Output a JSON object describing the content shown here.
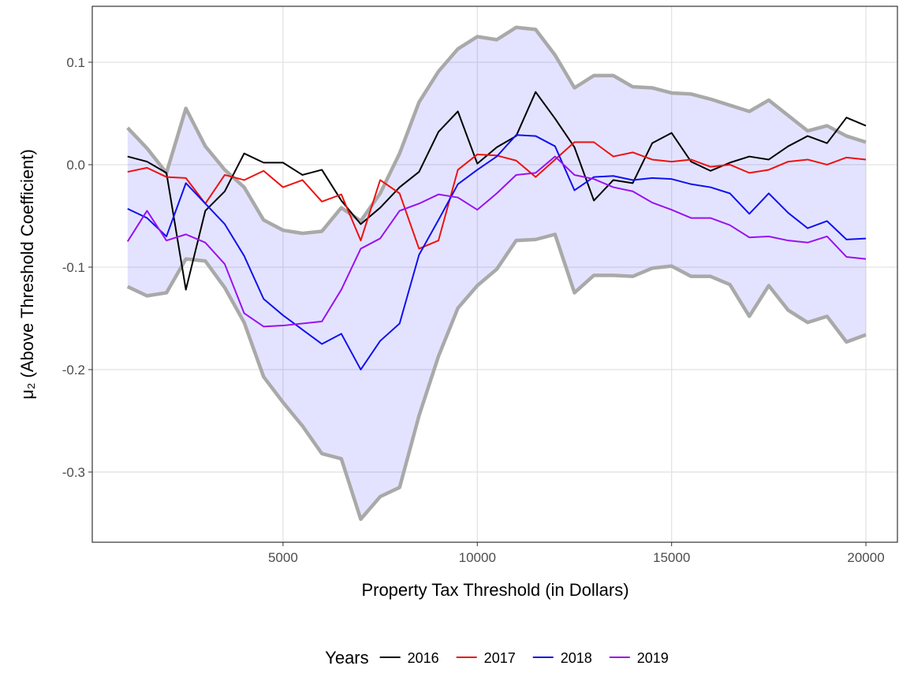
{
  "chart_data": {
    "type": "line",
    "x_label": "Property Tax Threshold (in Dollars)",
    "y_label": "μ₂ (Above Threshold Coefficient)",
    "legend_title": "Years",
    "legend_position": "bottom",
    "grid": true,
    "xlim": [
      91,
      20811
    ],
    "ylim": [
      -0.3685,
      0.1546
    ],
    "xticks": [
      5000,
      10000,
      15000,
      20000
    ],
    "yticks": [
      0.1,
      {
        "value": 0,
        "label": "0.0"
      },
      -0.1,
      -0.2,
      -0.3
    ],
    "x": [
      1000,
      1500,
      2000,
      2500,
      3000,
      3500,
      4000,
      4500,
      5000,
      5500,
      6000,
      6500,
      7000,
      7500,
      8000,
      8500,
      9000,
      9500,
      10000,
      10500,
      11000,
      11500,
      12000,
      12500,
      13000,
      13500,
      14000,
      14500,
      15000,
      15500,
      16000,
      16500,
      17000,
      17500,
      18000,
      18500,
      19000,
      19500,
      20000
    ],
    "band": {
      "fill": "#0000ff",
      "line_color": "#a9a9a9",
      "upper": [
        0.036,
        0.016,
        -0.008,
        0.055,
        0.018,
        -0.005,
        -0.022,
        -0.054,
        -0.064,
        -0.067,
        -0.065,
        -0.042,
        -0.055,
        -0.028,
        0.011,
        0.061,
        0.091,
        0.113,
        0.125,
        0.122,
        0.134,
        0.132,
        0.107,
        0.075,
        0.087,
        0.087,
        0.076,
        0.075,
        0.07,
        0.069,
        0.064,
        0.058,
        0.052,
        0.063,
        0.048,
        0.033,
        0.038,
        0.028,
        0.022
      ],
      "lower": [
        -0.119,
        -0.128,
        -0.125,
        -0.092,
        -0.094,
        -0.12,
        -0.154,
        -0.207,
        -0.232,
        -0.255,
        -0.282,
        -0.287,
        -0.346,
        -0.324,
        -0.315,
        -0.245,
        -0.187,
        -0.14,
        -0.118,
        -0.102,
        -0.074,
        -0.073,
        -0.068,
        -0.125,
        -0.108,
        -0.108,
        -0.109,
        -0.101,
        -0.099,
        -0.109,
        -0.109,
        -0.117,
        -0.148,
        -0.118,
        -0.142,
        -0.154,
        -0.148,
        -0.173,
        -0.166
      ]
    },
    "series": [
      {
        "name": "2016",
        "color": "#000000",
        "values": [
          0.008,
          0.003,
          -0.008,
          -0.122,
          -0.045,
          -0.026,
          0.011,
          0.002,
          0.002,
          -0.01,
          -0.005,
          -0.035,
          -0.058,
          -0.042,
          -0.022,
          -0.007,
          0.032,
          0.052,
          0.001,
          0.017,
          0.028,
          0.071,
          0.045,
          0.017,
          -0.035,
          -0.015,
          -0.018,
          0.021,
          0.031,
          0.003,
          -0.006,
          0.002,
          0.008,
          0.005,
          0.018,
          0.028,
          0.021,
          0.046,
          0.038
        ]
      },
      {
        "name": "2017",
        "color": "#ee1111",
        "values": [
          -0.007,
          -0.003,
          -0.012,
          -0.013,
          -0.038,
          -0.01,
          -0.015,
          -0.006,
          -0.022,
          -0.015,
          -0.036,
          -0.029,
          -0.074,
          -0.015,
          -0.028,
          -0.082,
          -0.074,
          -0.005,
          0.01,
          0.009,
          0.004,
          -0.012,
          0.005,
          0.022,
          0.022,
          0.008,
          0.012,
          0.005,
          0.003,
          0.005,
          -0.002,
          0,
          -0.008,
          -0.005,
          0.003,
          0.005,
          0,
          0.007,
          0.005
        ]
      },
      {
        "name": "2018",
        "color": "#1111ee",
        "values": [
          -0.043,
          -0.052,
          -0.07,
          -0.018,
          -0.038,
          -0.058,
          -0.089,
          -0.131,
          -0.147,
          -0.161,
          -0.175,
          -0.165,
          -0.2,
          -0.172,
          -0.155,
          -0.088,
          -0.054,
          -0.019,
          -0.005,
          0.008,
          0.029,
          0.028,
          0.018,
          -0.025,
          -0.012,
          -0.011,
          -0.015,
          -0.013,
          -0.014,
          -0.019,
          -0.022,
          -0.028,
          -0.048,
          -0.028,
          -0.047,
          -0.062,
          -0.055,
          -0.073,
          -0.072
        ]
      },
      {
        "name": "2019",
        "color": "#9a11ee",
        "values": [
          -0.075,
          -0.045,
          -0.074,
          -0.068,
          -0.076,
          -0.097,
          -0.145,
          -0.158,
          -0.157,
          -0.155,
          -0.153,
          -0.122,
          -0.082,
          -0.072,
          -0.045,
          -0.038,
          -0.029,
          -0.032,
          -0.044,
          -0.028,
          -0.01,
          -0.008,
          0.008,
          -0.01,
          -0.014,
          -0.022,
          -0.026,
          -0.037,
          -0.044,
          -0.052,
          -0.052,
          -0.059,
          -0.071,
          -0.07,
          -0.074,
          -0.076,
          -0.07,
          -0.09,
          -0.092
        ]
      }
    ]
  }
}
